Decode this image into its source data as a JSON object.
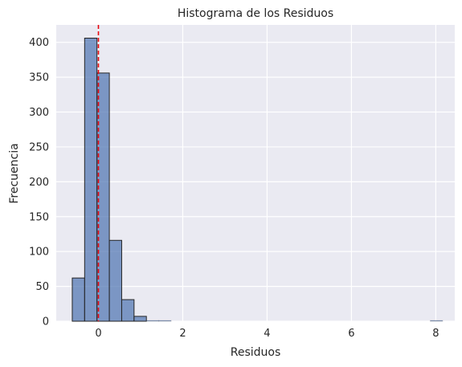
{
  "chart_data": {
    "type": "bar",
    "title": "Histograma de los Residuos",
    "xlabel": "Residuos",
    "ylabel": "Frecuencia",
    "xlim": [
      -1.0,
      8.45
    ],
    "ylim": [
      0,
      425
    ],
    "xticks": [
      0,
      2,
      4,
      6,
      8
    ],
    "yticks": [
      0,
      50,
      100,
      150,
      200,
      250,
      300,
      350,
      400
    ],
    "grid": true,
    "bin_width": 0.293,
    "bins": [
      {
        "x0": -0.62,
        "x1": -0.327,
        "count": 62
      },
      {
        "x0": -0.327,
        "x1": -0.034,
        "count": 406
      },
      {
        "x0": -0.034,
        "x1": 0.259,
        "count": 356
      },
      {
        "x0": 0.259,
        "x1": 0.552,
        "count": 116
      },
      {
        "x0": 0.552,
        "x1": 0.845,
        "count": 31
      },
      {
        "x0": 0.845,
        "x1": 1.138,
        "count": 7
      },
      {
        "x0": 1.138,
        "x1": 1.431,
        "count": 1
      },
      {
        "x0": 1.431,
        "x1": 1.724,
        "count": 1
      },
      {
        "x0": 7.869,
        "x1": 8.162,
        "count": 1
      }
    ],
    "reference_line": {
      "x": 0,
      "color": "#e8000b",
      "style": "dashed"
    },
    "colors": {
      "background": "#eaeaf2",
      "grid": "#ffffff",
      "bar_fill": "#4c72b0",
      "bar_edge": "#262626"
    }
  }
}
